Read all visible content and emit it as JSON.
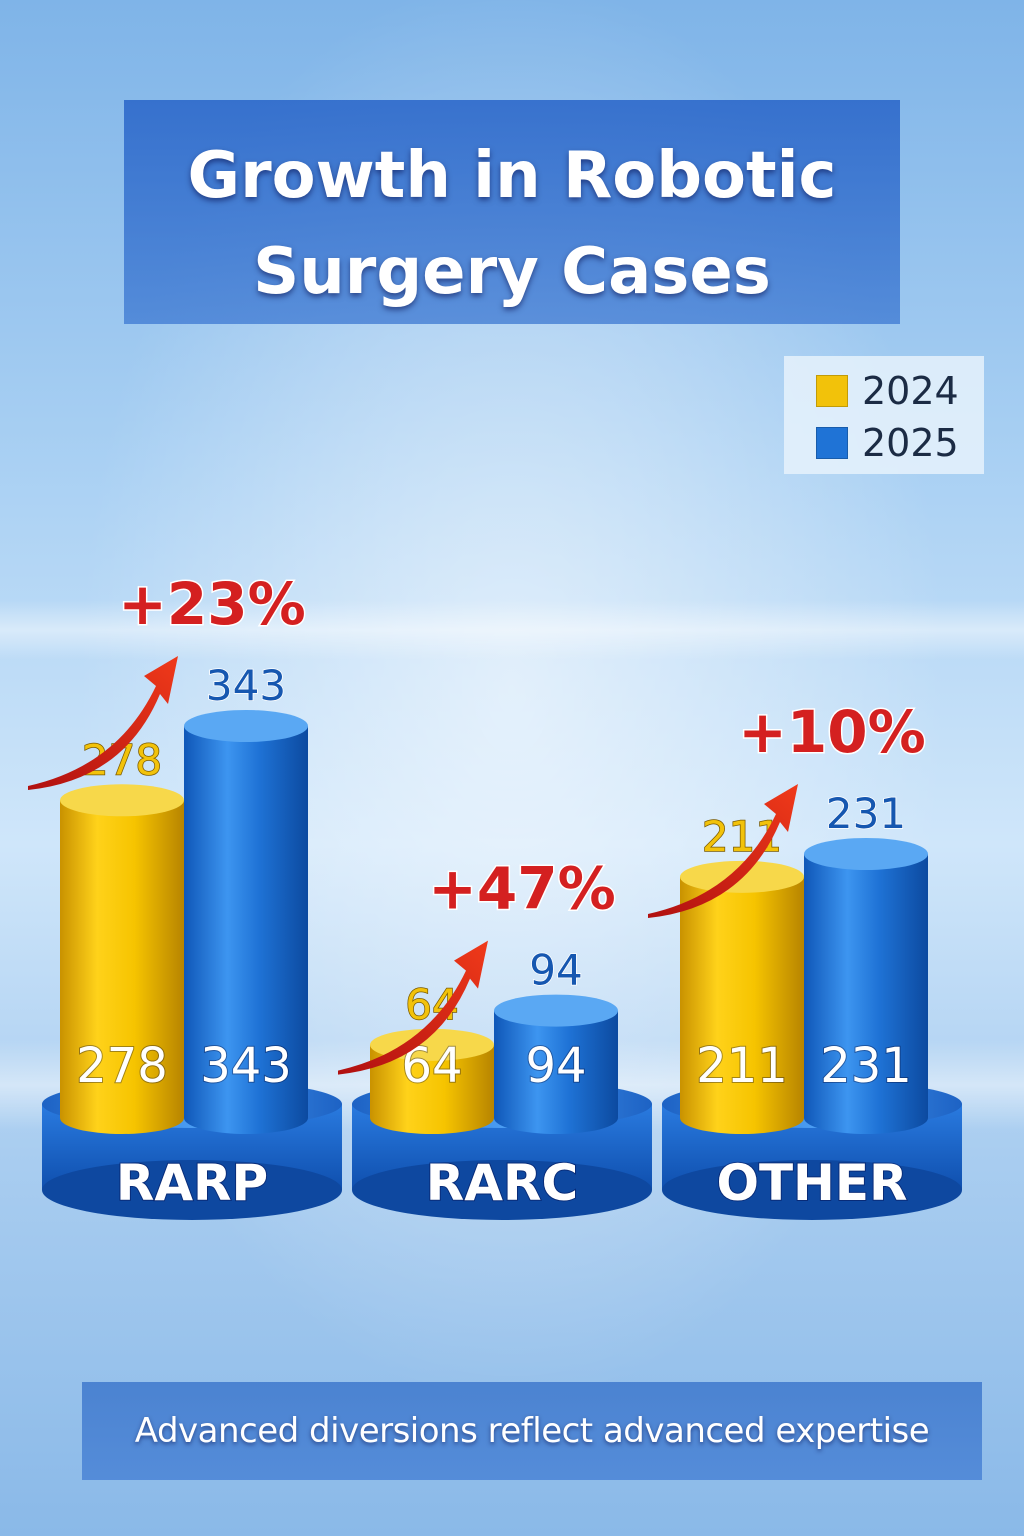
{
  "title_line1": "Growth in Robotic",
  "title_line2": "Surgery Cases",
  "footer": "Advanced diversions reflect advanced expertise",
  "legend": [
    {
      "label": "2024",
      "color": "#f2c20a"
    },
    {
      "label": "2025",
      "color": "#1f73d6"
    }
  ],
  "chart_data": {
    "type": "bar",
    "title": "Growth in Robotic Surgery Cases",
    "categories": [
      "RARP",
      "RARC",
      "OTHER"
    ],
    "series": [
      {
        "name": "2024",
        "values": [
          278,
          64,
          211
        ]
      },
      {
        "name": "2025",
        "values": [
          343,
          94,
          231
        ]
      }
    ],
    "growth_labels": [
      "+23%",
      "+47%",
      "+10%"
    ],
    "legend_position": "top-right",
    "grid": false
  }
}
